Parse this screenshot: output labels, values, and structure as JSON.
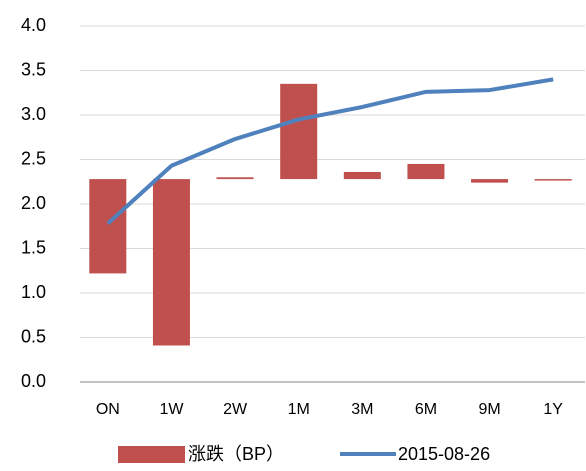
{
  "chart_data": {
    "type": "bar-line",
    "categories": [
      "ON",
      "1W",
      "2W",
      "1M",
      "3M",
      "6M",
      "9M",
      "1Y"
    ],
    "series": [
      {
        "name": "涨跌（BP）",
        "type": "bar",
        "axis": "y2",
        "color": "#c0504d",
        "values": [
          -1.06,
          -1.87,
          0.02,
          1.07,
          0.08,
          0.17,
          -0.04,
          0
        ]
      },
      {
        "name": "2015-08-26",
        "type": "line",
        "color": "#4f81bd",
        "values": [
          1.78,
          2.43,
          2.73,
          2.95,
          3.09,
          3.26,
          3.28,
          3.4
        ]
      }
    ],
    "ylim": [
      0,
      4
    ],
    "yticks": [
      {
        "value": 0,
        "label": "0.0"
      },
      {
        "value": 0.5,
        "label": "0.5"
      },
      {
        "value": 1,
        "label": "1.0"
      },
      {
        "value": 1.5,
        "label": "1.5"
      },
      {
        "value": 2,
        "label": "2.0"
      },
      {
        "value": 2.5,
        "label": "2.5"
      },
      {
        "value": 3,
        "label": "3.0"
      },
      {
        "value": 3.5,
        "label": "3.5"
      },
      {
        "value": 4,
        "label": "4.0"
      }
    ],
    "y2lim": [
      -2.28,
      1.72
    ],
    "grid": true,
    "legend": "bottom"
  }
}
